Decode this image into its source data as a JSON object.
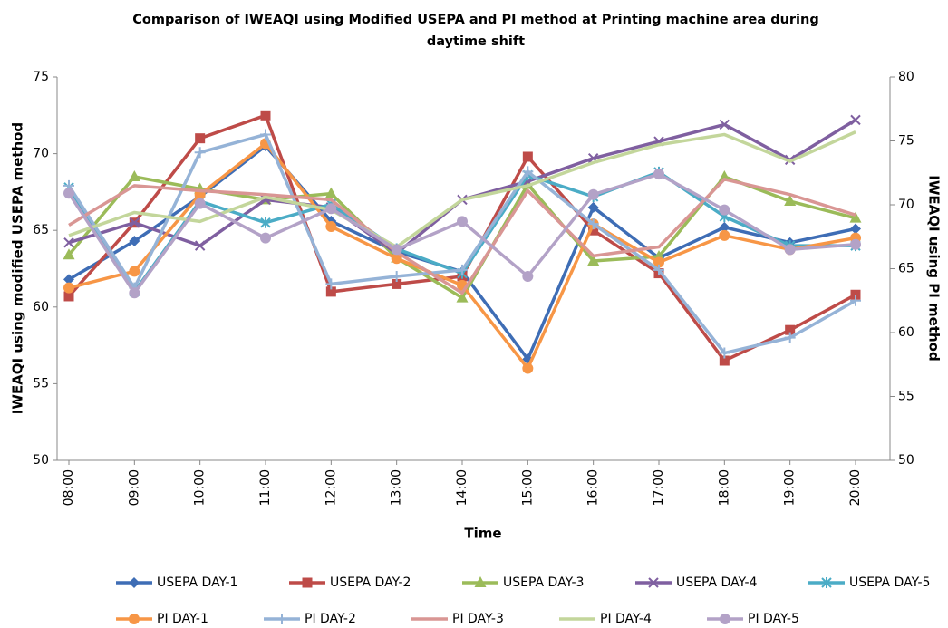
{
  "chart_data": {
    "type": "line",
    "title": [
      "Comparison of IWEAQI using Modified USEPA and PI method at Printing machine area during",
      "daytime shift"
    ],
    "x_label": "Time",
    "y_label": "IWEAQI using modified USEPA method",
    "y2_label": "IWEAQI using PI method",
    "categories": [
      "08:00",
      "09:00",
      "10:00",
      "11:00",
      "12:00",
      "13:00",
      "14:00",
      "15:00",
      "16:00",
      "17:00",
      "18:00",
      "19:00",
      "20:00"
    ],
    "ylim": [
      50,
      75
    ],
    "yticks": [
      50,
      55,
      60,
      65,
      70,
      75
    ],
    "y2lim": [
      50,
      80
    ],
    "y2ticks": [
      50,
      55,
      60,
      65,
      70,
      75,
      80
    ],
    "grid": false,
    "legend": "bottom",
    "series": [
      {
        "name": "USEPA DAY-1",
        "color": "#3e6db5",
        "marker": "diamond",
        "values": [
          61.8,
          64.3,
          67.2,
          70.5,
          65.6,
          63.6,
          62.3,
          56.6,
          66.5,
          63.2,
          65.2,
          64.2,
          65.1
        ]
      },
      {
        "name": "USEPA DAY-2",
        "color": "#be4b48",
        "marker": "square",
        "values": [
          60.7,
          65.5,
          71.0,
          72.5,
          61.0,
          61.5,
          62.0,
          69.8,
          65.0,
          62.2,
          56.5,
          58.5,
          60.8
        ]
      },
      {
        "name": "USEPA DAY-3",
        "color": "#9bbb59",
        "marker": "triangle",
        "values": [
          63.4,
          68.5,
          67.7,
          67.0,
          67.4,
          63.2,
          60.6,
          68.0,
          63.0,
          63.3,
          68.5,
          66.9,
          65.8
        ]
      },
      {
        "name": "USEPA DAY-4",
        "color": "#7f5fa0",
        "marker": "x",
        "values": [
          64.2,
          65.5,
          64.0,
          67.0,
          66.5,
          63.5,
          67.0,
          68.2,
          69.7,
          70.8,
          71.9,
          69.6,
          72.2
        ]
      },
      {
        "name": "USEPA DAY-5",
        "color": "#4bacc6",
        "marker": "star",
        "values": [
          67.8,
          61.0,
          66.9,
          65.5,
          66.7,
          63.8,
          62.2,
          68.6,
          67.2,
          68.8,
          65.9,
          64.0,
          64.0
        ]
      },
      {
        "name": "PI DAY-1",
        "color": "#f79646",
        "marker": "circle",
        "axis": "y2",
        "values": [
          63.5,
          64.8,
          70.8,
          74.8,
          68.3,
          65.8,
          63.7,
          57.2,
          68.5,
          65.5,
          67.6,
          66.5,
          67.4
        ]
      },
      {
        "name": "PI DAY-2",
        "color": "#95b3d7",
        "marker": "plus",
        "axis": "y2",
        "values": [
          71.5,
          63.5,
          74.1,
          75.5,
          63.8,
          64.4,
          64.9,
          72.6,
          68.5,
          64.9,
          58.4,
          59.6,
          62.5
        ]
      },
      {
        "name": "PI DAY-3",
        "color": "#d99694",
        "marker": "none",
        "axis": "y2",
        "values": [
          68.4,
          71.5,
          71.1,
          70.8,
          70.4,
          66.3,
          63.1,
          71.1,
          66.0,
          66.7,
          72.0,
          70.8,
          69.2
        ]
      },
      {
        "name": "PI DAY-4",
        "color": "#c3d69b",
        "marker": "none",
        "axis": "y2",
        "values": [
          67.6,
          69.4,
          68.7,
          70.6,
          69.6,
          66.7,
          70.4,
          71.5,
          73.3,
          74.7,
          75.5,
          73.4,
          75.7
        ]
      },
      {
        "name": "PI DAY-5",
        "color": "#b3a2c7",
        "marker": "circle",
        "axis": "y2",
        "values": [
          70.9,
          63.1,
          70.1,
          67.4,
          69.7,
          66.5,
          68.7,
          64.4,
          70.8,
          72.4,
          69.6,
          66.5,
          66.9
        ]
      }
    ]
  }
}
